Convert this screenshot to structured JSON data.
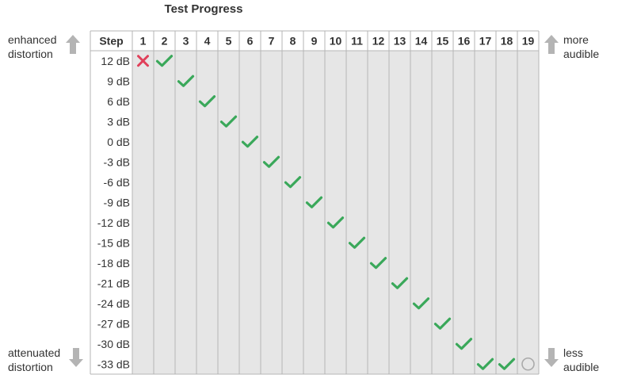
{
  "title": "Test Progress",
  "header_label": "Step",
  "steps": [
    "1",
    "2",
    "3",
    "4",
    "5",
    "6",
    "7",
    "8",
    "9",
    "10",
    "11",
    "12",
    "13",
    "14",
    "15",
    "16",
    "17",
    "18",
    "19"
  ],
  "levels": [
    "12 dB",
    "9 dB",
    "6 dB",
    "3 dB",
    "0 dB",
    "-3 dB",
    "-6 dB",
    "-9 dB",
    "-12 dB",
    "-15 dB",
    "-18 dB",
    "-21 dB",
    "-24 dB",
    "-27 dB",
    "-30 dB",
    "-33 dB"
  ],
  "left_top": [
    "enhanced",
    "distortion"
  ],
  "left_bottom": [
    "attenuated",
    "distortion"
  ],
  "right_top": [
    "more",
    "audible"
  ],
  "right_bottom": [
    "less",
    "audible"
  ],
  "marks": [
    {
      "step": 1,
      "level": 0,
      "type": "cross"
    },
    {
      "step": 2,
      "level": 0,
      "type": "check"
    },
    {
      "step": 3,
      "level": 1,
      "type": "check"
    },
    {
      "step": 4,
      "level": 2,
      "type": "check"
    },
    {
      "step": 5,
      "level": 3,
      "type": "check"
    },
    {
      "step": 6,
      "level": 4,
      "type": "check"
    },
    {
      "step": 7,
      "level": 5,
      "type": "check"
    },
    {
      "step": 8,
      "level": 6,
      "type": "check"
    },
    {
      "step": 9,
      "level": 7,
      "type": "check"
    },
    {
      "step": 10,
      "level": 8,
      "type": "check"
    },
    {
      "step": 11,
      "level": 9,
      "type": "check"
    },
    {
      "step": 12,
      "level": 10,
      "type": "check"
    },
    {
      "step": 13,
      "level": 11,
      "type": "check"
    },
    {
      "step": 14,
      "level": 12,
      "type": "check"
    },
    {
      "step": 15,
      "level": 13,
      "type": "check"
    },
    {
      "step": 16,
      "level": 14,
      "type": "check"
    },
    {
      "step": 17,
      "level": 15,
      "type": "check"
    },
    {
      "step": 18,
      "level": 15,
      "type": "check"
    },
    {
      "step": 19,
      "level": 15,
      "type": "pending"
    }
  ],
  "colors": {
    "check": "#3aa85a",
    "cross": "#e0405a",
    "pending": "#aaaaaa",
    "cell": "#e6e6e6",
    "line": "#b5b5b5",
    "arrow": "#b4b4b4"
  },
  "icons": {
    "check": "check-icon",
    "cross": "cross-icon",
    "pending": "circle-icon",
    "up": "arrow-up-icon",
    "down": "arrow-down-icon"
  }
}
